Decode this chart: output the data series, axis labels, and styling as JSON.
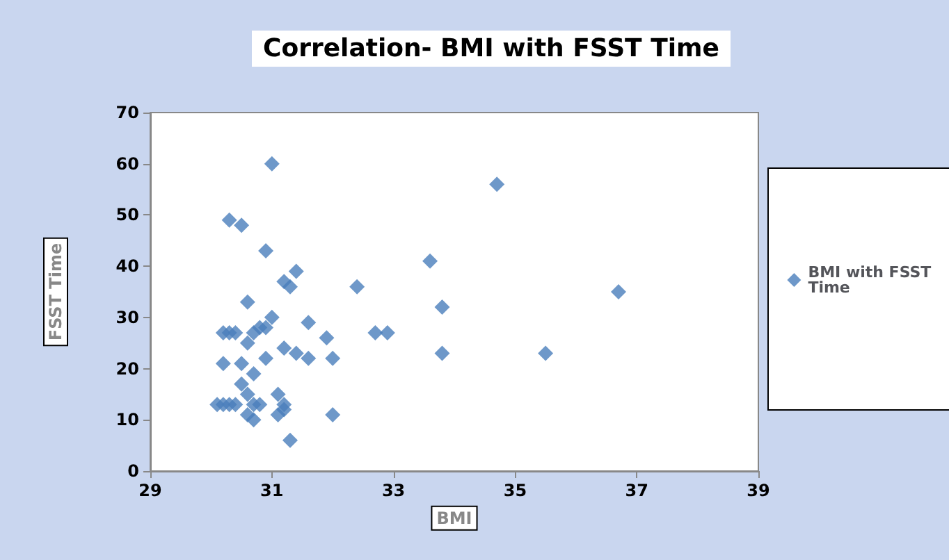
{
  "chart_data": {
    "type": "scatter",
    "title": "Correlation- BMI with FSST Time",
    "xlabel": "BMI",
    "ylabel": "FSST Time",
    "series": [
      {
        "name": "BMI with FSST Time",
        "color": "#4a7ebb",
        "x": [
          31.0,
          30.3,
          30.5,
          30.9,
          31.4,
          31.2,
          31.3,
          32.4,
          33.6,
          34.7,
          36.7,
          33.8,
          33.8,
          35.5,
          30.6,
          31.0,
          31.6,
          31.9,
          32.7,
          32.9,
          30.2,
          30.3,
          30.4,
          30.6,
          30.7,
          30.8,
          30.9,
          31.2,
          31.4,
          31.6,
          32.0,
          30.9,
          30.2,
          30.5,
          30.7,
          30.5,
          30.6,
          30.1,
          30.2,
          30.3,
          30.4,
          30.7,
          30.8,
          30.6,
          30.7,
          31.1,
          31.2,
          31.1,
          31.2,
          32.0,
          31.3
        ],
        "values": [
          60,
          49,
          48,
          43,
          39,
          37,
          36,
          36,
          41,
          56,
          35,
          32,
          23,
          23,
          33,
          30,
          29,
          26,
          27,
          27,
          27,
          27,
          27,
          25,
          27,
          28,
          28,
          24,
          23,
          22,
          22,
          22,
          21,
          21,
          19,
          17,
          15,
          13,
          13,
          13,
          13,
          13,
          13,
          11,
          10,
          15,
          13,
          11,
          12,
          11,
          6
        ]
      }
    ],
    "xlim": [
      29,
      39
    ],
    "xticks": [
      29,
      31,
      33,
      35,
      37,
      39
    ],
    "ylim": [
      0,
      70
    ],
    "yticks": [
      0,
      10,
      20,
      30,
      40,
      50,
      60,
      70
    ],
    "grid": false,
    "legend": "right",
    "marker": "diamond"
  }
}
